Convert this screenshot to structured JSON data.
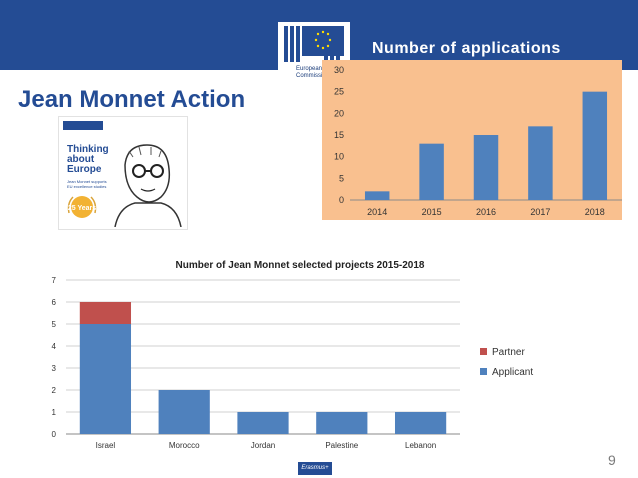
{
  "header": {
    "title": "Number of applications",
    "logo_text": "European Commission",
    "banner_color": "#244c94"
  },
  "main_title": "Jean Monnet Action",
  "poster": {
    "headline": "Thinking about Europe",
    "caption": "Jean Monnet supports EU excellence studies",
    "badge": "25 Years"
  },
  "chart_data": [
    {
      "type": "bar",
      "title": "",
      "categories": [
        "2014",
        "2015",
        "2016",
        "2017",
        "2018"
      ],
      "values": [
        2,
        13,
        15,
        17,
        25
      ],
      "ylim": [
        0,
        30
      ],
      "yticks": [
        "0",
        "5",
        "10",
        "15",
        "20",
        "25",
        "30"
      ],
      "grid": false,
      "background": "#f9c08f",
      "bar_color": "#4f81bd"
    },
    {
      "type": "bar",
      "stacked": true,
      "title": "Number of Jean Monnet selected projects  2015-2018",
      "categories": [
        "Israel",
        "Morocco",
        "Jordan",
        "Palestine",
        "Lebanon"
      ],
      "series": [
        {
          "name": "Applicant",
          "values": [
            5,
            2,
            1,
            1,
            1
          ],
          "color": "#4f81bd"
        },
        {
          "name": "Partner",
          "values": [
            1,
            0,
            0,
            0,
            0
          ],
          "color": "#c0504d"
        }
      ],
      "ylim": [
        0,
        7
      ],
      "yticks": [
        "0",
        "1",
        "2",
        "3",
        "4",
        "5",
        "6",
        "7"
      ],
      "grid": true,
      "legend": "right"
    }
  ],
  "footer": {
    "program": "Erasmus+",
    "page_number": "9"
  }
}
